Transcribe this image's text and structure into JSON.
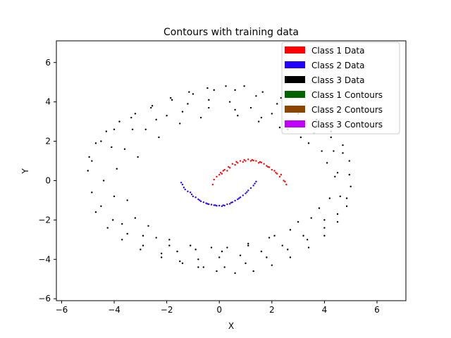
{
  "chart_data": {
    "type": "scatter",
    "title": "Contours with training data",
    "xlabel": "X",
    "ylabel": "Y",
    "xlim": [
      -6.2,
      7.1
    ],
    "ylim": [
      -6.1,
      7.1
    ],
    "x_ticks": [
      -6,
      -4,
      -2,
      0,
      2,
      4,
      6
    ],
    "y_ticks": [
      -6,
      -4,
      -2,
      0,
      2,
      4,
      6
    ],
    "x_tick_labels": [
      "−6",
      "−4",
      "−2",
      "0",
      "2",
      "4",
      "6"
    ],
    "y_tick_labels": [
      "−6",
      "−4",
      "−2",
      "0",
      "2",
      "4",
      "6"
    ],
    "grid": false,
    "legend_position": "top-right",
    "legend": [
      {
        "label": "Class 1 Data",
        "color": "#ff0000"
      },
      {
        "label": "Class 2 Data",
        "color": "#2200ff"
      },
      {
        "label": "Class 3 Data",
        "color": "#000000"
      },
      {
        "label": "Class 1 Contours",
        "color": "#006400"
      },
      {
        "label": "Class 2 Contours",
        "color": "#8b4500"
      },
      {
        "label": "Class 3 Contours",
        "color": "#bf00ff"
      }
    ],
    "series": [
      {
        "name": "Class 1 Data",
        "color": "#ff0000",
        "x": [
          -0.25,
          -0.1,
          0.05,
          0.2,
          0.35,
          0.5,
          0.65,
          0.8,
          0.95,
          1.1,
          1.25,
          1.4,
          1.55,
          1.7,
          1.85,
          2.0,
          2.15,
          2.3,
          2.45,
          2.55,
          -0.2,
          0.0,
          0.3,
          0.6,
          0.9,
          1.2,
          1.5,
          1.8,
          2.1,
          2.35,
          0.1,
          0.4,
          0.7,
          1.0,
          1.3,
          1.6,
          1.9,
          2.2,
          2.5,
          0.15
        ],
        "y": [
          -0.2,
          0.2,
          0.4,
          0.55,
          0.7,
          0.85,
          0.95,
          1.0,
          1.05,
          1.08,
          1.05,
          1.0,
          0.95,
          0.85,
          0.7,
          0.55,
          0.4,
          0.2,
          0.0,
          -0.2,
          0.05,
          0.3,
          0.5,
          0.8,
          0.95,
          1.0,
          0.9,
          0.75,
          0.5,
          0.3,
          0.35,
          0.65,
          0.9,
          1.0,
          1.02,
          0.92,
          0.68,
          0.35,
          -0.05,
          0.5
        ]
      },
      {
        "name": "Class 2 Data",
        "color": "#2200ff",
        "x": [
          -1.45,
          -1.35,
          -1.2,
          -1.05,
          -0.9,
          -0.75,
          -0.6,
          -0.45,
          -0.3,
          -0.15,
          0.0,
          0.15,
          0.3,
          0.45,
          0.6,
          0.75,
          0.9,
          1.05,
          1.2,
          1.35,
          -1.4,
          -1.1,
          -0.8,
          -0.5,
          -0.2,
          0.1,
          0.4,
          0.7,
          1.0,
          1.3,
          -1.3,
          -1.0,
          -0.7,
          -0.4,
          -0.1,
          0.2,
          0.5,
          0.8,
          1.1,
          1.4
        ],
        "y": [
          -0.1,
          -0.35,
          -0.55,
          -0.7,
          -0.85,
          -1.0,
          -1.1,
          -1.18,
          -1.22,
          -1.25,
          -1.27,
          -1.25,
          -1.2,
          -1.12,
          -1.02,
          -0.9,
          -0.75,
          -0.58,
          -0.38,
          -0.15,
          -0.2,
          -0.6,
          -0.95,
          -1.15,
          -1.25,
          -1.3,
          -1.18,
          -0.95,
          -0.65,
          -0.25,
          -0.45,
          -0.8,
          -1.05,
          -1.2,
          -1.28,
          -1.27,
          -1.1,
          -0.85,
          -0.5,
          -0.05
        ]
      },
      {
        "name": "Class 3 Data",
        "color": "#000000",
        "x": [
          -5.0,
          -4.95,
          -4.85,
          -4.7,
          -4.5,
          -4.3,
          -4.05,
          -3.8,
          -3.5,
          -3.2,
          -2.9,
          -2.55,
          -2.2,
          -1.85,
          -1.5,
          -1.15,
          -0.8,
          -0.45,
          -0.1,
          0.25,
          0.6,
          0.95,
          1.3,
          1.65,
          2.0,
          2.35,
          2.7,
          3.05,
          3.4,
          3.7,
          4.0,
          4.25,
          4.5,
          4.7,
          4.85,
          4.95,
          5.0,
          4.95,
          4.85,
          4.7,
          4.5,
          4.25,
          4.0,
          3.7,
          3.35,
          3.0,
          2.6,
          2.2,
          1.8,
          1.4,
          1.0,
          0.6,
          0.2,
          -0.2,
          -0.6,
          -1.0,
          -1.4,
          -1.8,
          -2.2,
          -2.6,
          -3.0,
          -3.35,
          -3.7,
          -4.0,
          -4.25,
          -4.5,
          -4.7,
          -4.85,
          -4.4,
          -4.0,
          -3.6,
          -3.2,
          -2.8,
          -2.4,
          -2.0,
          -1.6,
          -1.2,
          -0.8,
          -0.4,
          0.0,
          0.4,
          0.8,
          1.2,
          1.6,
          2.0,
          2.4,
          2.8,
          3.2,
          3.6,
          4.0,
          4.35,
          4.6,
          4.4,
          4.1,
          3.8,
          3.4,
          3.0,
          2.6,
          2.1,
          1.6,
          1.1,
          0.6,
          0.1,
          -0.4,
          -0.9,
          -1.4,
          -1.9,
          -2.4,
          -2.9,
          -3.3,
          -3.7,
          -4.1,
          -3.9,
          -3.5,
          -3.1,
          -2.7,
          -2.3,
          -1.9,
          -1.5,
          -1.1,
          -0.7,
          -0.3,
          0.3,
          0.7,
          1.1,
          1.5,
          1.9,
          2.3,
          2.7,
          3.1,
          3.5,
          3.9,
          4.2,
          4.5
        ],
        "y": [
          0.5,
          1.2,
          -0.6,
          1.9,
          -1.3,
          2.5,
          -2.0,
          3.0,
          -2.7,
          3.4,
          -3.3,
          3.8,
          -3.7,
          4.2,
          -4.1,
          4.5,
          -4.4,
          4.7,
          -4.6,
          4.8,
          -4.7,
          4.8,
          -4.6,
          4.5,
          -4.3,
          4.2,
          -3.9,
          3.7,
          -3.4,
          3.1,
          -2.8,
          2.5,
          -2.1,
          1.8,
          -1.3,
          1.0,
          -0.3,
          0.3,
          -0.9,
          1.4,
          -1.7,
          2.2,
          -2.4,
          2.8,
          -3.0,
          3.4,
          -3.5,
          3.9,
          -3.9,
          4.3,
          -4.2,
          4.6,
          -4.4,
          4.6,
          -4.4,
          4.4,
          -4.2,
          4.1,
          -3.9,
          3.7,
          -3.5,
          3.2,
          -3.0,
          2.6,
          -2.4,
          2.0,
          -1.6,
          1.0,
          0.0,
          -0.8,
          1.6,
          -1.9,
          2.6,
          -2.9,
          3.3,
          -3.6,
          3.9,
          -4.0,
          4.1,
          -3.9,
          4.0,
          -3.8,
          3.7,
          -3.6,
          3.4,
          -3.3,
          3.0,
          -2.8,
          2.4,
          -2.0,
          1.5,
          -0.8,
          0.2,
          0.9,
          -1.4,
          1.9,
          -2.1,
          2.6,
          -2.8,
          3.2,
          -3.3,
          3.6,
          -3.6,
          3.7,
          -3.5,
          3.5,
          -3.3,
          3.1,
          -2.8,
          2.6,
          -2.2,
          1.7,
          0.6,
          -1.0,
          1.2,
          -2.3,
          2.2,
          -3.0,
          2.9,
          -3.3,
          3.2,
          -3.4,
          -3.4,
          3.3,
          -3.2,
          3.0,
          -2.9,
          2.7,
          -2.5,
          2.2,
          -1.9,
          1.5,
          -0.9,
          0.4
        ]
      }
    ]
  }
}
